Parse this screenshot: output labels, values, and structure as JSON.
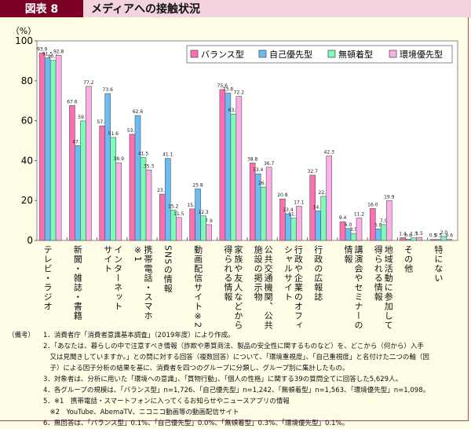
{
  "header": {
    "figure_number": "図表 8",
    "title": "メディアへの接触状況"
  },
  "chart_data": {
    "type": "bar",
    "title": "メディアへの接触状況",
    "ylabel": "（%）",
    "ylim": [
      0,
      100
    ],
    "yticks": [
      0,
      20,
      40,
      60,
      80,
      100
    ],
    "grid": false,
    "legend_position": "top-right",
    "categories": [
      "テレビ・ラジオ",
      "新聞・雑誌・書籍",
      "インターネット\nサイト",
      "携帯電話・スマホ\n※1",
      "SNSの情報",
      "動画配信サイト※2",
      "家族や友人などから\n得られる情報",
      "公共交通機関、公共\n施設の掲示物",
      "行政や企業のオフィ\nシャルサイト",
      "行政の広報誌",
      "講演会やセミナーの\n情報",
      "地域活動に参加して\n得られる情報",
      "その他",
      "特にない"
    ],
    "series": [
      {
        "name": "バランス型",
        "color": "#ff6eb0",
        "values": [
          93.9,
          67.6,
          57.4,
          53.2,
          23.2,
          15.8,
          75.6,
          38.8,
          20.8,
          32.7,
          9.4,
          16.0,
          1.4,
          0.5
        ]
      },
      {
        "name": "自己優先型",
        "color": "#6bbcf5",
        "values": [
          91.5,
          47.5,
          73.6,
          62.6,
          41.1,
          25.8,
          73.8,
          33.4,
          13.4,
          14.8,
          6.0,
          5.8,
          0.6,
          0.5
        ]
      },
      {
        "name": "無頓着型",
        "color": "#7dfbb9",
        "values": [
          90.2,
          59.9,
          51.6,
          41.5,
          15.2,
          12.3,
          63.3,
          26.7,
          11.2,
          22.1,
          3.5,
          7.9,
          1.3,
          2.0
        ]
      },
      {
        "name": "環境優先型",
        "color": "#ffaee6",
        "values": [
          92.8,
          77.2,
          38.9,
          35.3,
          11.5,
          7.9,
          72.2,
          36.7,
          17.1,
          42.3,
          11.2,
          19.9,
          1.5,
          0.6
        ]
      }
    ]
  },
  "notes": {
    "label": "（備考）",
    "items": [
      "1．消費者庁「消費者意識基本調査」（2019年度）により作成。",
      "2．「あなたは、暮らしの中で注意すべき情報（詐欺や悪質商法、製品の安全性に関するものなど）を、どこから（何から）入手\n　又は見聞きしていますか。」との問に対する回答（複数回答）について、「環境重視度」、「自己重視度」と名付けた二つの軸（因\n　子）による因子分析の結果を基に、消費者を四つのグループに分類し、グループ別に集計したもの。",
      "3．対象者は、分析に用いた「環境への意識」、「買物行動」、「個人の性格」に関する39の質問全てに回答した5,629人。",
      "4．各グループの規模は、「バランス型」n=1,726、「自己優先型」n=1,242、「無頓着型」n=1,563、「環境優先型」n=1,098。",
      "5．※1　携帯電話・スマートフォンに入ってくるお知らせやニュースアプリの情報\n　※2　YouTube、AbemaTV、ニコニコ動画等の動画配信サイト",
      "6．無回答は、「バランス型」0.1%、「自己優先型」0.0%、「無頓着型」0.3%、「環境優先型」0.1%。"
    ]
  }
}
